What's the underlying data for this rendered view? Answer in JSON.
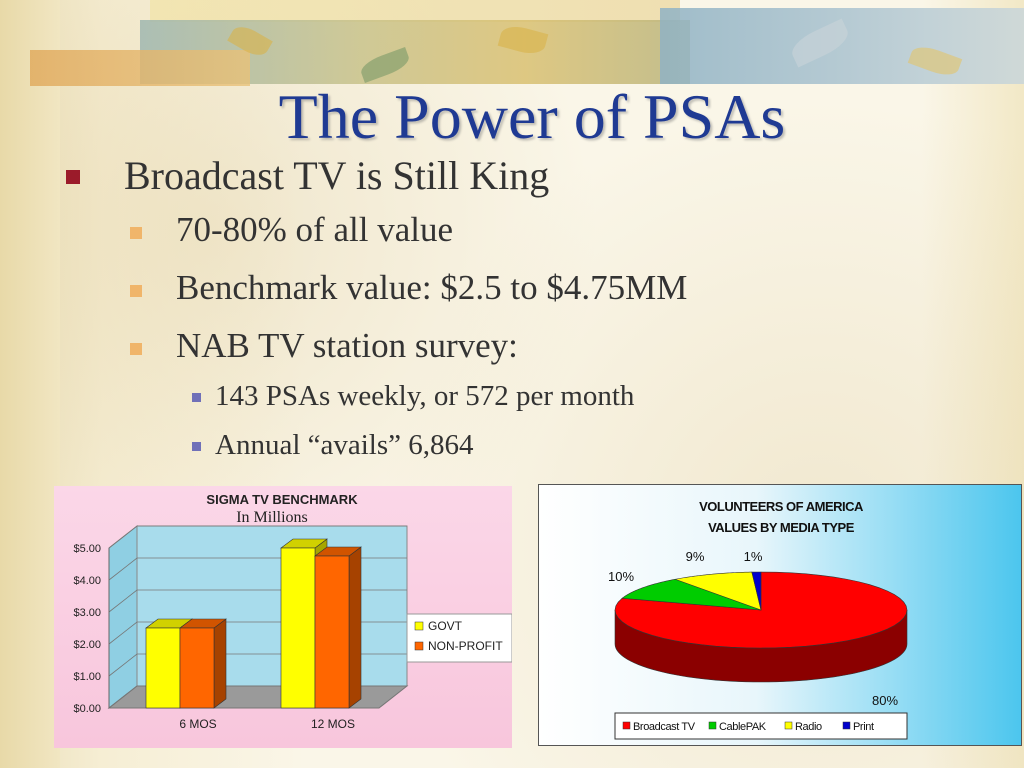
{
  "slide": {
    "title": "The Power of PSAs",
    "bullet1": "Broadcast TV is Still King",
    "sub_bullets": [
      "70-80% of all value",
      "Benchmark value: $2.5 to $4.75MM",
      "NAB TV station survey:"
    ],
    "sub_sub_bullets": [
      "143 PSAs weekly, or 572 per month",
      "Annual “avails” 6,864"
    ]
  },
  "chart_data": [
    {
      "type": "bar",
      "title": "SIGMA TV BENCHMARK",
      "subtitle": "In Millions",
      "categories": [
        "6 MOS",
        "12 MOS"
      ],
      "series": [
        {
          "name": "GOVT",
          "values": [
            2.5,
            5.0
          ],
          "color": "#ffff00"
        },
        {
          "name": "NON-PROFIT",
          "values": [
            2.5,
            4.75
          ],
          "color": "#ff6600"
        }
      ],
      "y_ticks": [
        "$0.00",
        "$1.00",
        "$2.00",
        "$3.00",
        "$4.00",
        "$5.00"
      ],
      "ylim": [
        0,
        5
      ],
      "legend": "right"
    },
    {
      "type": "pie",
      "title": "VOLUNTEERS OF AMERICA",
      "subtitle": "VALUES BY MEDIA TYPE",
      "slices": [
        {
          "name": "Broadcast TV",
          "value": 80,
          "label": "80%",
          "color": "#ff0000"
        },
        {
          "name": "CablePAK",
          "value": 10,
          "label": "10%",
          "color": "#00cc00"
        },
        {
          "name": "Radio",
          "value": 9,
          "label": "9%",
          "color": "#ffff00"
        },
        {
          "name": "Print",
          "value": 1,
          "label": "1%",
          "color": "#0000cc"
        }
      ],
      "legend": "bottom"
    }
  ]
}
